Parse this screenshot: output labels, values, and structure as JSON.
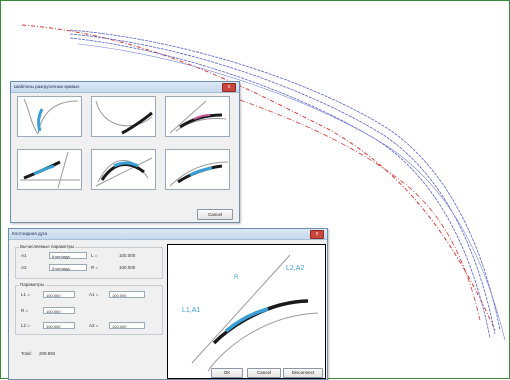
{
  "colors": {
    "accent_blue": "#3a9fd6",
    "curve_black": "#1a1a1a",
    "guide_gray": "#9a9a9a",
    "route_red": "#d83a3a",
    "route_blue": "#5560c8"
  },
  "dialog_templates": {
    "title": "Шаблоны разгрузочных кривых",
    "close_label": "x",
    "ok_label": "Cancel"
  },
  "dialog_params": {
    "title": "Клотоидная дуга",
    "close_label": "x",
    "group_title": "Вычисляемые параметры",
    "row1": {
      "label": "A1",
      "type": "Клотоида",
      "sym": "L =",
      "value": "100.000"
    },
    "row2": {
      "label": "A2",
      "type": "Клотоида",
      "sym": "R =",
      "value": "100.000"
    },
    "params_title": "Параметры",
    "p1": {
      "label": "L1 =",
      "value": "100.000",
      "label2": "A1 =",
      "value2": "100.000"
    },
    "p2": {
      "label": "R =",
      "value": "100.000"
    },
    "p3": {
      "label": "L2 =",
      "value": "100.000",
      "label2": "A2 =",
      "value2": "100.000"
    },
    "footer": {
      "label": "Total:",
      "value": "209.892"
    },
    "buttons": {
      "ok": "OK",
      "cancel": "Cancel",
      "disconnect": "Disconnect"
    },
    "preview_labels": {
      "r": "R",
      "l2a2": "L2,A2",
      "l1a1": "L1,A1"
    }
  }
}
